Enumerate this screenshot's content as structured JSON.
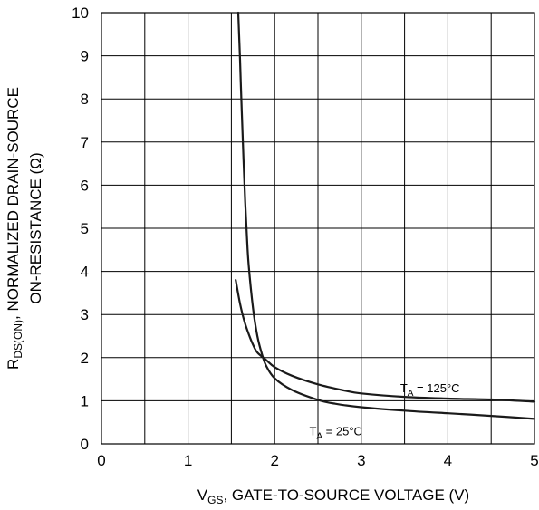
{
  "chart_data": {
    "type": "line",
    "xlabel": {
      "main": "V",
      "sub": "GS",
      "rest": ", GATE-TO-SOURCE VOLTAGE (V)"
    },
    "ylabel": {
      "line1_main": "R",
      "line1_sub": "DS(ON)",
      "line1_rest": ", NORMALIZED DRAIN-SOURCE",
      "line2": "ON-RESISTANCE (Ω)"
    },
    "xlim": [
      0,
      5
    ],
    "ylim": [
      0,
      10
    ],
    "x_ticks": [
      "0",
      "1",
      "2",
      "3",
      "4",
      "5"
    ],
    "y_ticks": [
      "0",
      "1",
      "2",
      "3",
      "4",
      "5",
      "6",
      "7",
      "8",
      "9",
      "10"
    ],
    "grid": true,
    "x_minor_step": 0.5,
    "series": [
      {
        "annotation": {
          "main": "T",
          "sub": "A",
          "rest": " = 125°C",
          "x": 3.45,
          "y": 1.2
        },
        "x": [
          1.55,
          1.6,
          1.65,
          1.7,
          1.75,
          1.8,
          1.9,
          2.0,
          2.2,
          2.5,
          2.8,
          3.0,
          3.5,
          4.0,
          4.5,
          5.0
        ],
        "y": [
          3.8,
          3.25,
          2.85,
          2.55,
          2.3,
          2.12,
          1.95,
          1.78,
          1.58,
          1.38,
          1.24,
          1.17,
          1.09,
          1.05,
          1.03,
          0.98
        ]
      },
      {
        "annotation": {
          "main": "T",
          "sub": "A",
          "rest": " = 25°C",
          "x": 2.4,
          "y": 0.2
        },
        "x": [
          1.58,
          1.6,
          1.62,
          1.64,
          1.66,
          1.68,
          1.7,
          1.75,
          1.8,
          1.85,
          1.9,
          2.0,
          2.2,
          2.5,
          2.7,
          3.0,
          3.5,
          4.0,
          4.5,
          5.0
        ],
        "y": [
          10,
          8.9,
          7.7,
          6.6,
          5.6,
          4.8,
          4.15,
          3.15,
          2.5,
          2.1,
          1.82,
          1.52,
          1.25,
          1.02,
          0.93,
          0.85,
          0.77,
          0.71,
          0.65,
          0.58
        ]
      }
    ]
  }
}
